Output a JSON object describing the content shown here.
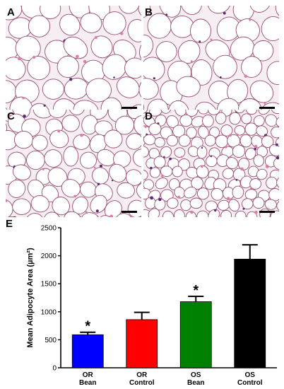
{
  "panels": [
    {
      "letter": "A",
      "cell_size": "large"
    },
    {
      "letter": "B",
      "cell_size": "large"
    },
    {
      "letter": "C",
      "cell_size": "medium"
    },
    {
      "letter": "D",
      "cell_size": "small"
    }
  ],
  "chart_panel_letter": "E",
  "colors": {
    "membrane": "#9a4a6e",
    "nucleus": "#5a2a7a",
    "stroma": "#e07aa6",
    "cell_interior": "#ffffff",
    "background_tissue": "#f7eef3"
  },
  "chart_data": {
    "type": "bar",
    "categories": [
      [
        "OR",
        "Bean"
      ],
      [
        "OR",
        "Control"
      ],
      [
        "OS",
        "Bean"
      ],
      [
        "OS",
        "Control"
      ]
    ],
    "values": [
      590,
      860,
      1180,
      1940
    ],
    "errors": [
      45,
      130,
      95,
      255
    ],
    "colors": [
      "#0000ff",
      "#ff0000",
      "#008000",
      "#000000"
    ],
    "significance": [
      "*",
      "",
      "*",
      ""
    ],
    "ylabel": "Mean Adipocyte Area (µm²)",
    "xlabel": "",
    "ylim": [
      0,
      2500
    ],
    "yticks": [
      "0",
      "500",
      "1000",
      "1500",
      "2000",
      "2500"
    ],
    "grid": false
  }
}
